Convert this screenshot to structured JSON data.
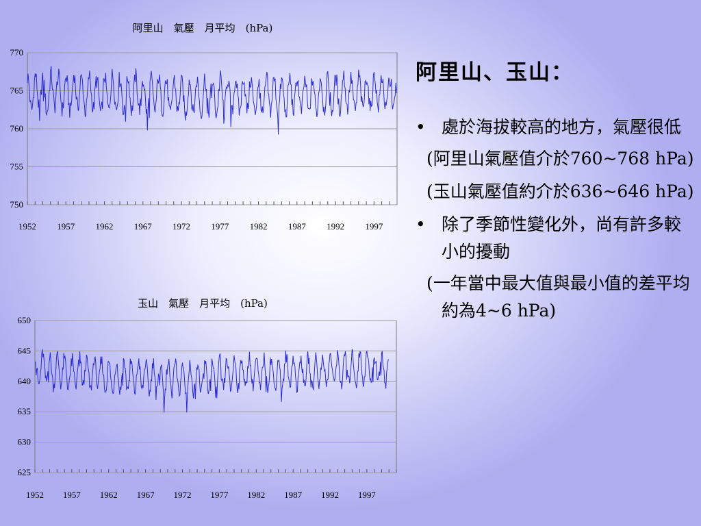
{
  "slide": {
    "heading": "阿里山、玉山：",
    "bullets": [
      {
        "text": "處於海拔較高的地方，氣壓很低"
      },
      {
        "text": "除了季節性變化外，尚有許多較小的擾動"
      }
    ],
    "notes": [
      {
        "text": "(阿里山氣壓值介於760~768 hPa)"
      },
      {
        "text": "(玉山氣壓值約介於636~646 hPa)"
      },
      {
        "text": "(一年當中最大值與最小值的差平均約為4~6 hPa)"
      }
    ],
    "bullet_glyph": "•"
  },
  "chart_data": [
    {
      "type": "line",
      "title": "阿里山　氣壓　月平均　(hPa)",
      "xlabel": "",
      "ylabel": "",
      "x_tick_labels": [
        "1952",
        "1957",
        "1962",
        "1967",
        "1972",
        "1977",
        "1982",
        "1987",
        "1992",
        "1997"
      ],
      "y_tick_labels": [
        "770",
        "765",
        "760",
        "755",
        "750"
      ],
      "ylim": [
        750,
        770
      ],
      "xlim": [
        1952,
        1999.99
      ],
      "grid": true,
      "line_color": "#2b2bd0",
      "series": [
        {
          "annual_values": [
            764.6,
            764.9,
            764.3,
            765.1,
            764.7,
            764.5,
            765.0,
            764.4,
            764.8,
            764.2,
            764.7,
            764.9,
            764.3,
            764.6,
            764.8,
            764.1,
            764.5,
            764.7,
            764.0,
            764.4,
            763.9,
            764.3,
            764.2,
            764.5,
            764.1,
            764.6,
            764.3,
            764.4,
            764.6,
            764.2,
            764.0,
            764.5,
            764.3,
            764.1,
            764.6,
            764.4,
            764.2,
            764.3,
            764.7,
            764.5,
            764.6,
            764.9,
            764.4,
            764.8,
            764.7,
            765.0,
            764.6,
            764.9
          ]
        }
      ],
      "seasonal_amplitude": 2.2
    },
    {
      "type": "line",
      "title": "玉山　氣壓　月平均　(hPa)",
      "xlabel": "",
      "ylabel": "",
      "x_tick_labels": [
        "1952",
        "1957",
        "1962",
        "1967",
        "1972",
        "1977",
        "1982",
        "1987",
        "1992",
        "1997"
      ],
      "y_tick_labels": [
        "650",
        "645",
        "640",
        "635",
        "630",
        "625"
      ],
      "ylim": [
        625,
        650
      ],
      "xlim": [
        1952,
        2001
      ],
      "grid": true,
      "line_color": "#2b2bd0",
      "series": [
        {
          "annual_values": [
            641.8,
            642.3,
            641.6,
            641.9,
            641.2,
            641.5,
            641.7,
            641.0,
            641.4,
            640.9,
            640.6,
            640.8,
            641.1,
            640.7,
            641.0,
            640.5,
            640.8,
            640.3,
            640.9,
            640.4,
            640.1,
            640.6,
            640.5,
            640.9,
            640.7,
            641.2,
            641.0,
            641.4,
            641.3,
            641.7,
            641.1,
            641.5,
            641.2,
            641.4,
            641.8,
            641.3,
            641.6,
            641.5,
            641.9,
            641.7,
            642.1,
            641.8,
            642.2,
            642.0,
            642.3,
            642.1,
            642.4,
            642.2
          ]
        }
      ],
      "seasonal_amplitude": 2.4
    }
  ]
}
